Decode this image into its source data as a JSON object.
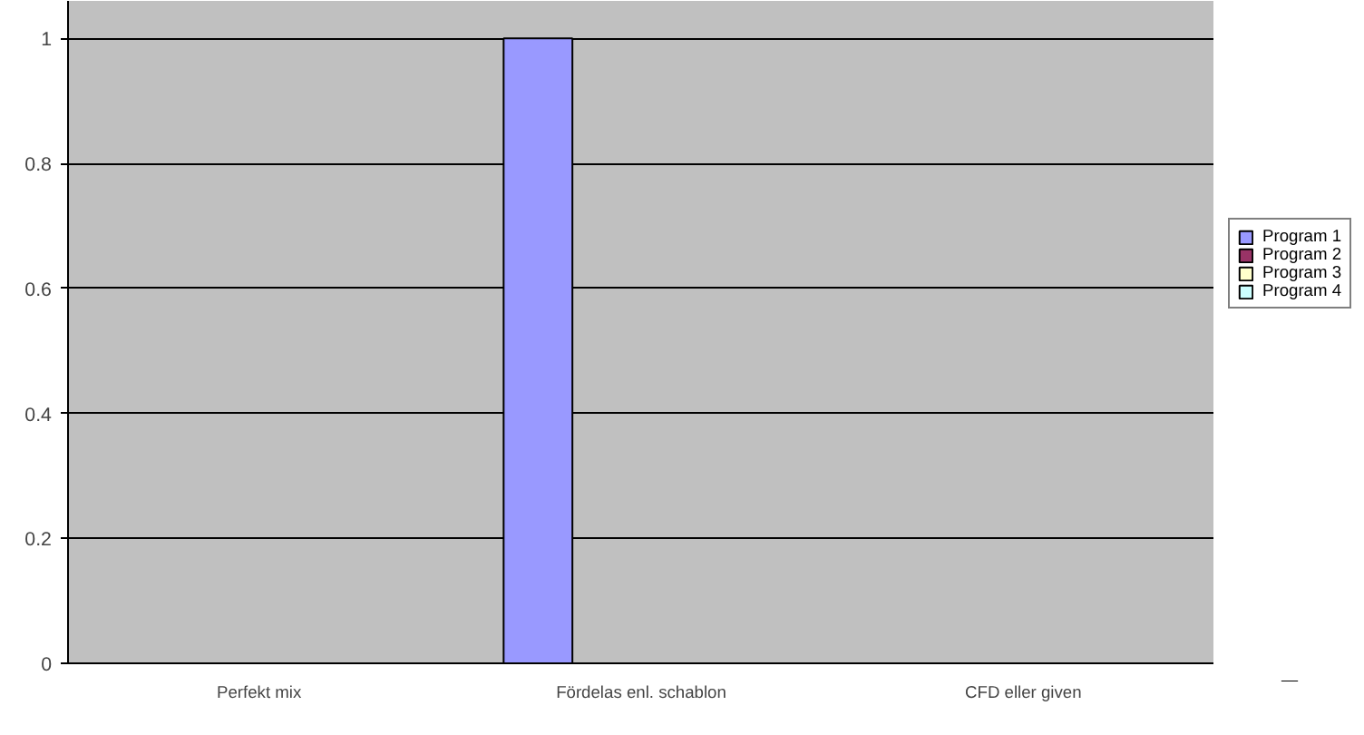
{
  "chart_data": {
    "type": "bar",
    "categories": [
      "Perfekt mix",
      "Fördelas enl. schablon",
      "CFD eller given"
    ],
    "series": [
      {
        "name": "Program 1",
        "color": "#9999ff",
        "values": [
          0,
          1,
          0
        ]
      },
      {
        "name": "Program 2",
        "color": "#993366",
        "values": [
          0,
          0,
          0
        ]
      },
      {
        "name": "Program 3",
        "color": "#ffffcc",
        "values": [
          0,
          0,
          0
        ]
      },
      {
        "name": "Program 4",
        "color": "#ccffff",
        "values": [
          0,
          0,
          0
        ]
      }
    ],
    "ylim": [
      0,
      1.06
    ],
    "yticks": [
      0,
      0.2,
      0.4,
      0.6,
      0.8,
      1
    ],
    "grid": "y",
    "legend": "right"
  }
}
